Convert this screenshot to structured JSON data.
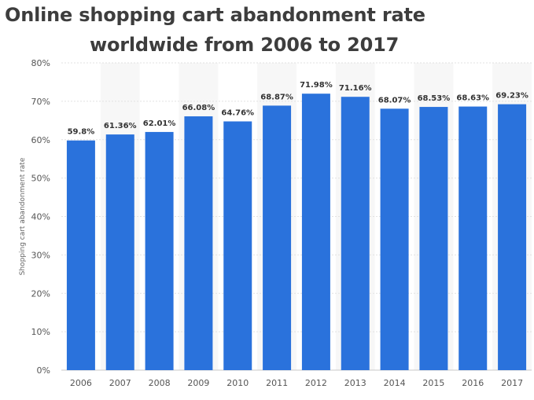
{
  "chart_data": {
    "type": "bar",
    "title_line1": "Online shopping cart abandonment rate",
    "title_line2": "worldwide from 2006 to 2017",
    "xlabel": "",
    "ylabel": "Shopping cart abandonment rate",
    "categories": [
      "2006",
      "2007",
      "2008",
      "2009",
      "2010",
      "2011",
      "2012",
      "2013",
      "2014",
      "2015",
      "2016",
      "2017"
    ],
    "values": [
      59.8,
      61.36,
      62.01,
      66.08,
      64.76,
      68.87,
      71.98,
      71.16,
      68.07,
      68.53,
      68.63,
      69.23
    ],
    "value_labels": [
      "59.8%",
      "61.36%",
      "62.01%",
      "66.08%",
      "64.76%",
      "68.87%",
      "71.98%",
      "71.16%",
      "68.07%",
      "68.53%",
      "68.63%",
      "69.23%"
    ],
    "ylim": [
      0,
      80
    ],
    "yticks": [
      "0%",
      "10%",
      "20%",
      "30%",
      "40%",
      "50%",
      "60%",
      "70%",
      "80%"
    ],
    "grid": true,
    "bar_color": "#2a72dc",
    "band_color": "#f7f7f7"
  }
}
